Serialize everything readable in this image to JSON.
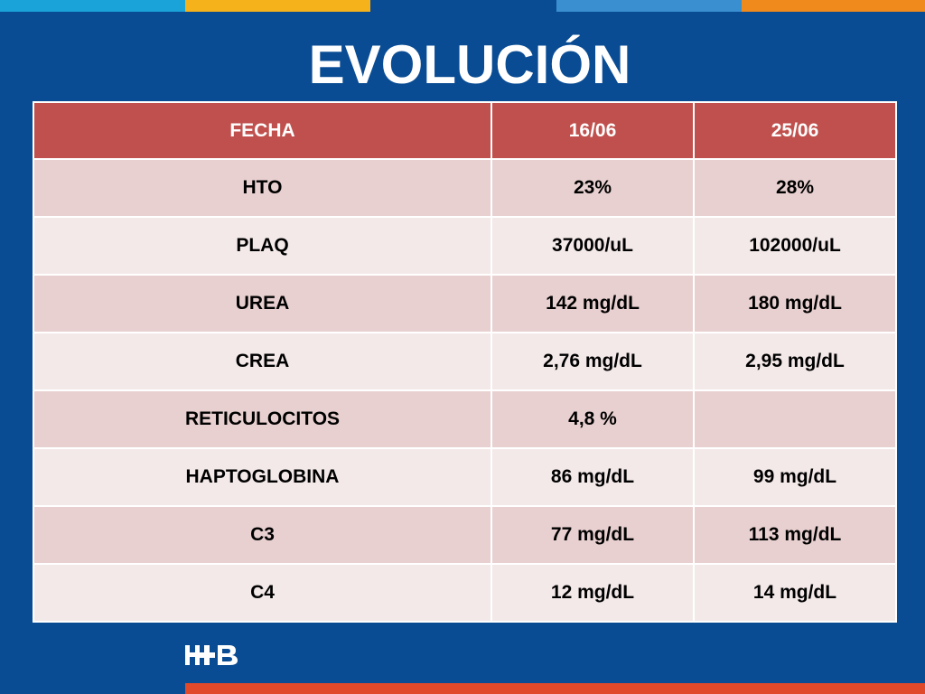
{
  "title": "EVOLUCIÓN",
  "colors": {
    "background": "#0a4c94",
    "header": "#c0504d",
    "row_odd": "#e9d0d0",
    "row_even": "#f4e9e9",
    "stripe_1": "#1aa3d8",
    "stripe_2": "#f5b21a",
    "stripe_3": "#0a4c94",
    "stripe_4": "#3a8fd0",
    "stripe_5": "#f08a1c",
    "bottom_bar": "#e04a2a"
  },
  "logo_text": "H+B",
  "table": {
    "headers": [
      "FECHA",
      "16/06",
      "25/06"
    ],
    "rows": [
      [
        "HTO",
        "23%",
        "28%"
      ],
      [
        "PLAQ",
        "37000/uL",
        "102000/uL"
      ],
      [
        "UREA",
        "142 mg/dL",
        "180 mg/dL"
      ],
      [
        "CREA",
        "2,76 mg/dL",
        "2,95 mg/dL"
      ],
      [
        "RETICULOCITOS",
        "4,8 %",
        ""
      ],
      [
        "HAPTOGLOBINA",
        "86 mg/dL",
        "99 mg/dL"
      ],
      [
        "C3",
        "77 mg/dL",
        "113 mg/dL"
      ],
      [
        "C4",
        "12 mg/dL",
        "14 mg/dL"
      ]
    ]
  }
}
